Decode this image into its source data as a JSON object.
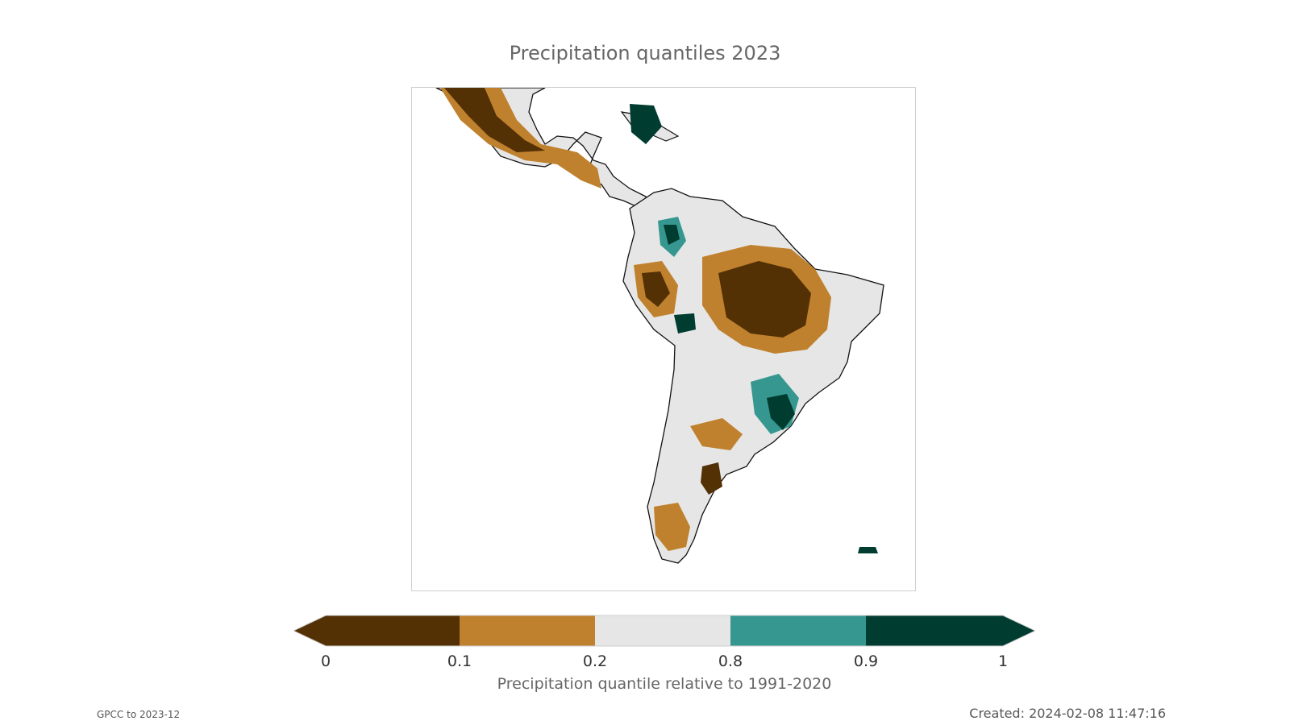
{
  "title": "Precipitation quantiles 2023",
  "colorbar": {
    "label": "Precipitation quantile relative to 1991-2020",
    "ticks": [
      "0",
      "0.1",
      "0.2",
      "0.8",
      "0.9",
      "1"
    ],
    "bins": [
      {
        "from": 0,
        "to": 0.1,
        "color": "#543005"
      },
      {
        "from": 0.1,
        "to": 0.2,
        "color": "#bf812d"
      },
      {
        "from": 0.2,
        "to": 0.8,
        "color": "#e6e6e6"
      },
      {
        "from": 0.8,
        "to": 0.9,
        "color": "#35978f"
      },
      {
        "from": 0.9,
        "to": 1,
        "color": "#003c30"
      }
    ],
    "extend": "both"
  },
  "footer": {
    "source": "GPCC to 2023-12",
    "created": "Created: 2024-02-08 11:47:16"
  }
}
